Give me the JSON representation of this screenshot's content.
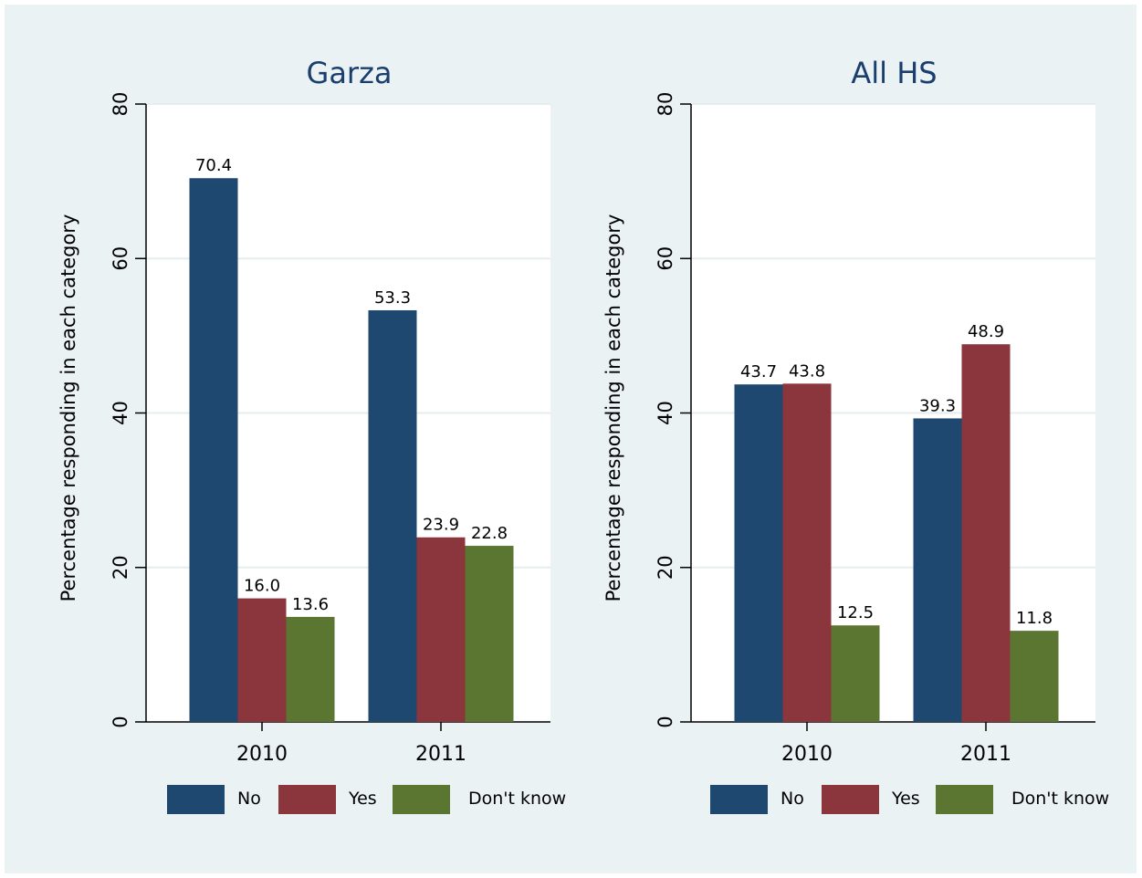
{
  "chart_data": [
    {
      "type": "bar",
      "title": "Garza",
      "xlabel": "",
      "ylabel": "Percentage responding in each category",
      "ylim": [
        0,
        80
      ],
      "yticks": [
        0,
        20,
        40,
        60,
        80
      ],
      "grid": true,
      "legend_position": "bottom",
      "categories": [
        "2010",
        "2011"
      ],
      "series": [
        {
          "name": "No",
          "color": "#1f4870",
          "values": [
            70.4,
            53.3
          ],
          "labels": [
            "70.4",
            "53.3"
          ]
        },
        {
          "name": "Yes",
          "color": "#8b353d",
          "values": [
            16.0,
            23.9
          ],
          "labels": [
            "16.0",
            "23.9"
          ]
        },
        {
          "name": "Don't know",
          "color": "#5a7631",
          "values": [
            13.6,
            22.8
          ],
          "labels": [
            "13.6",
            "22.8"
          ]
        }
      ]
    },
    {
      "type": "bar",
      "title": "All HS",
      "xlabel": "",
      "ylabel": "Percentage responding in each category",
      "ylim": [
        0,
        80
      ],
      "yticks": [
        0,
        20,
        40,
        60,
        80
      ],
      "grid": true,
      "legend_position": "bottom",
      "categories": [
        "2010",
        "2011"
      ],
      "series": [
        {
          "name": "No",
          "color": "#1f4870",
          "values": [
            43.7,
            39.3
          ],
          "labels": [
            "43.7",
            "39.3"
          ]
        },
        {
          "name": "Yes",
          "color": "#8b353d",
          "values": [
            43.8,
            48.9
          ],
          "labels": [
            "43.8",
            "48.9"
          ]
        },
        {
          "name": "Don't know",
          "color": "#5a7631",
          "values": [
            12.5,
            11.8
          ],
          "labels": [
            "12.5",
            "11.8"
          ]
        }
      ]
    }
  ]
}
